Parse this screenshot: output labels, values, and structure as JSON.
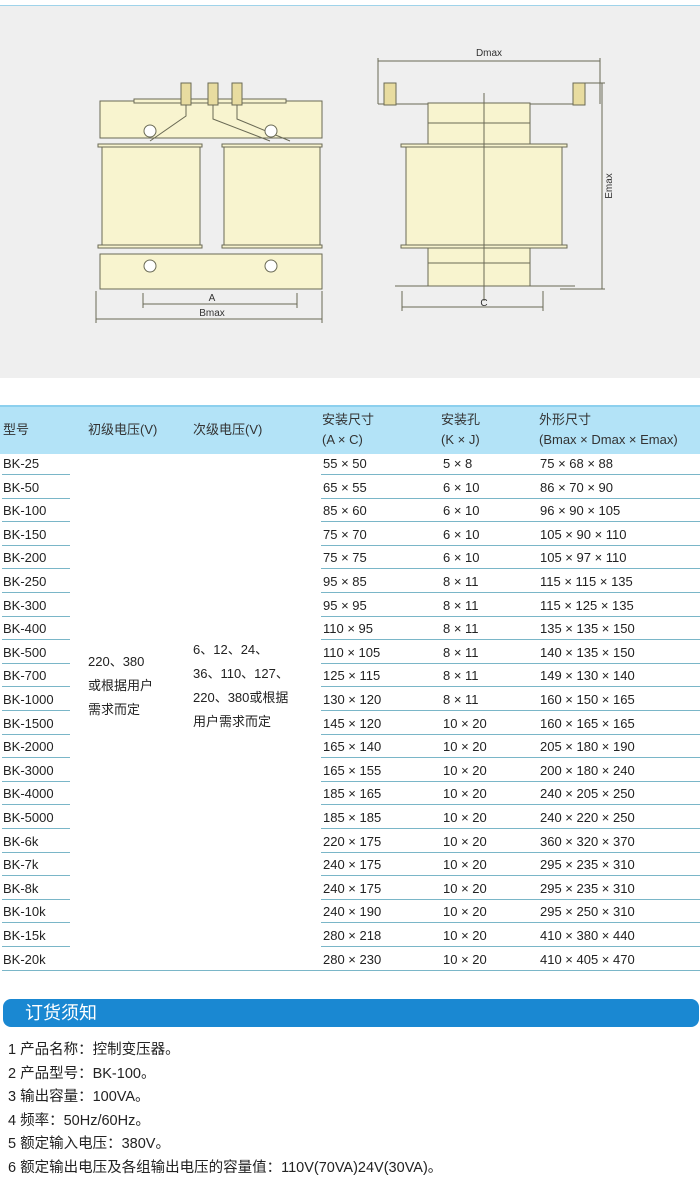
{
  "drawing": {
    "labels": {
      "a": "A",
      "bmax": "Bmax",
      "c": "C",
      "dmax": "Dmax",
      "emax": "Emax"
    },
    "colors": {
      "body": "#f8f4cf",
      "line": "#6a6a55",
      "bg": "#efefef"
    }
  },
  "table": {
    "headers": [
      {
        "l1": "型号",
        "l2": ""
      },
      {
        "l1": "初级电压(V)",
        "l2": ""
      },
      {
        "l1": "次级电压(V)",
        "l2": ""
      },
      {
        "l1": "安装尺寸",
        "l2": "(A × C)"
      },
      {
        "l1": "安装孔",
        "l2": "(K × J)"
      },
      {
        "l1": "外形尺寸",
        "l2": "(Bmax × Dmax × Emax)"
      }
    ],
    "primary": [
      "220、380",
      "或根据用户",
      "需求而定"
    ],
    "secondary": [
      "6、12、24、",
      "36、110、127、",
      "220、380或根据",
      "用户需求而定"
    ],
    "rows": [
      [
        "BK-25",
        "55 × 50",
        "5 × 8",
        "75 × 68 × 88"
      ],
      [
        "BK-50",
        "65 × 55",
        "6 × 10",
        "86 × 70 × 90"
      ],
      [
        "BK-100",
        "85 × 60",
        "6 × 10",
        "96 × 90 × 105"
      ],
      [
        "BK-150",
        "75 × 70",
        "6 × 10",
        "105 × 90 × 110"
      ],
      [
        "BK-200",
        "75 × 75",
        "6 × 10",
        "105 × 97 × 110"
      ],
      [
        "BK-250",
        "95 × 85",
        "8 × 11",
        "115 × 115 × 135"
      ],
      [
        "BK-300",
        "95 × 95",
        "8 × 11",
        "115 × 125 × 135"
      ],
      [
        "BK-400",
        "110 × 95",
        "8 × 11",
        "135 × 135 × 150"
      ],
      [
        "BK-500",
        "110 × 105",
        "8 × 11",
        "140 × 135 × 150"
      ],
      [
        "BK-700",
        "125 × 115",
        "8 × 11",
        "149 × 130 × 140"
      ],
      [
        "BK-1000",
        "130 × 120",
        "8 × 11",
        "160 × 150 × 165"
      ],
      [
        "BK-1500",
        "145 × 120",
        "10 × 20",
        "160 × 165 × 165"
      ],
      [
        "BK-2000",
        "165 × 140",
        "10 × 20",
        "205 × 180 × 190"
      ],
      [
        "BK-3000",
        "165 × 155",
        "10 × 20",
        "200 × 180 × 240"
      ],
      [
        "BK-4000",
        "185 × 165",
        "10 × 20",
        "240 × 205 × 250"
      ],
      [
        "BK-5000",
        "185 × 185",
        "10 × 20",
        "240 × 220 × 250"
      ],
      [
        "BK-6k",
        "220 × 175",
        "10 × 20",
        "360 × 320 × 370"
      ],
      [
        "BK-7k",
        "240 × 175",
        "10 × 20",
        "295 × 235 × 310"
      ],
      [
        "BK-8k",
        "240 × 175",
        "10 × 20",
        "295 × 235 × 310"
      ],
      [
        "BK-10k",
        "240 × 190",
        "10 × 20",
        "295 × 250 × 310"
      ],
      [
        "BK-15k",
        "280 × 218",
        "10 × 20",
        "410 × 380 × 440"
      ],
      [
        "BK-20k",
        "280 × 230",
        "10 × 20",
        "410 × 405 × 470"
      ]
    ]
  },
  "order": {
    "title": "订货须知",
    "bar_color": "#1a88d2",
    "items": [
      "1 产品名称：控制变压器。",
      "2 产品型号：BK-100。",
      "3 输出容量：100VA。",
      "4 频率：50Hz/60Hz。",
      "5 额定输入电压：380V。",
      "6 额定输出电压及各组输出电压的容量值：110V(70VA)24V(30VA)。"
    ]
  }
}
